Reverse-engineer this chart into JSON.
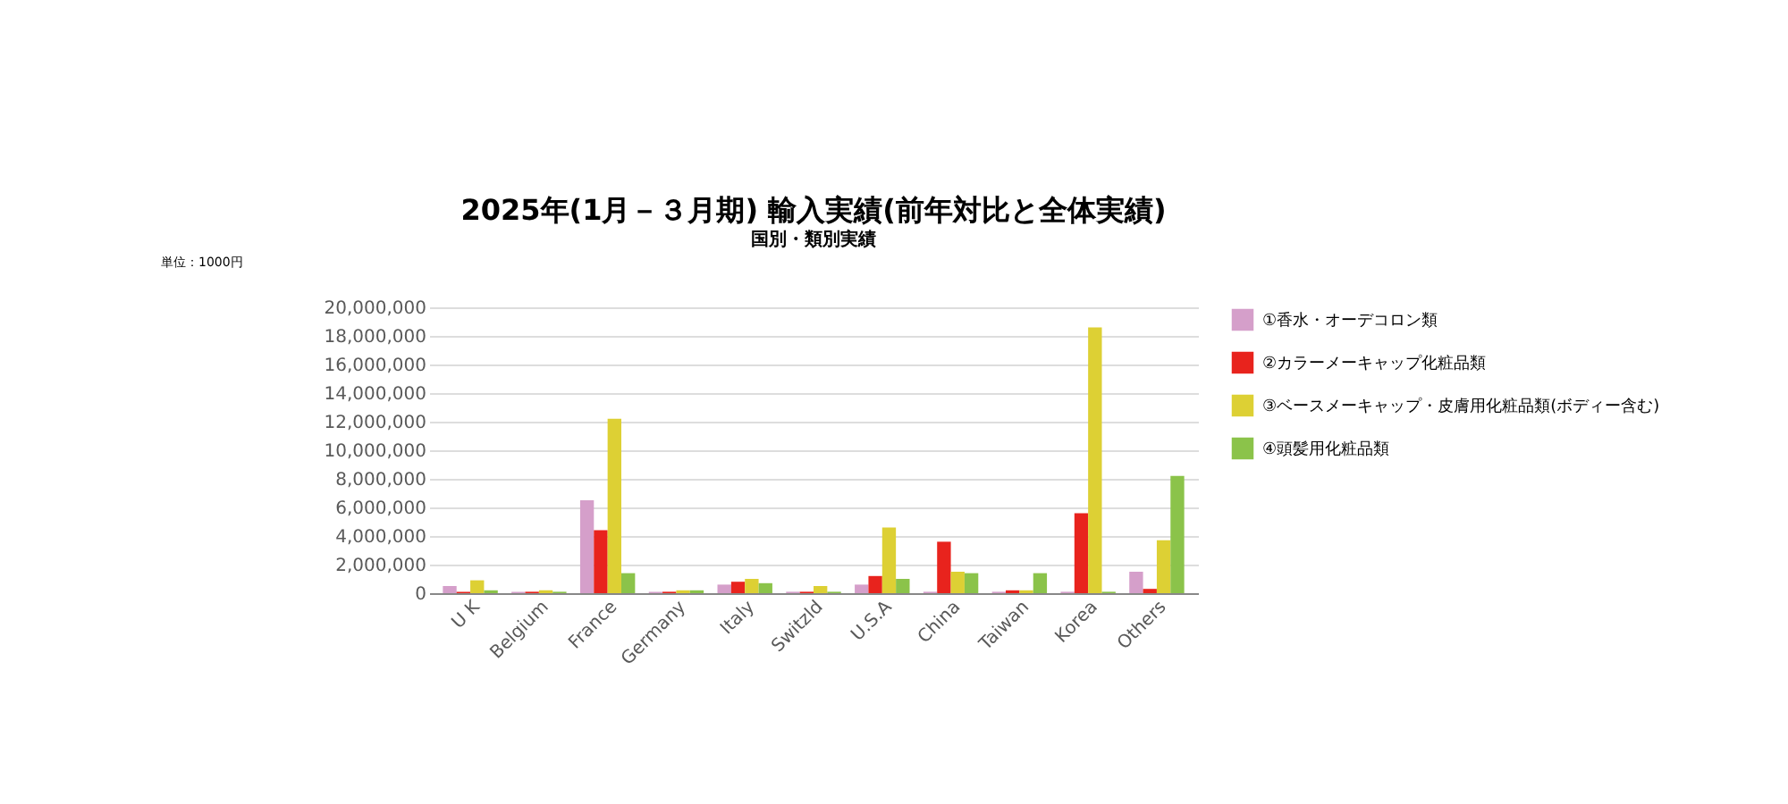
{
  "chart_data": {
    "type": "bar",
    "title": "2025年(1月－３月期)  輸入実績(前年対比と全体実績)",
    "subtitle": "国別・類別実績",
    "annotations": [
      "単位：1000円"
    ],
    "categories": [
      "U K",
      "Belgium",
      "France",
      "Germany",
      "Italy",
      "Switzld",
      "U.S.A",
      "China",
      "Taiwan",
      "Korea",
      "Others"
    ],
    "series": [
      {
        "name": "①香水・オーデコロン類",
        "color": "#d59fca",
        "values": [
          500000,
          100000,
          6500000,
          100000,
          600000,
          100000,
          600000,
          100000,
          100000,
          100000,
          1500000
        ]
      },
      {
        "name": "②カラーメーキャップ化粧品類",
        "color": "#e8231d",
        "values": [
          100000,
          100000,
          4400000,
          100000,
          800000,
          100000,
          1200000,
          3600000,
          200000,
          5600000,
          300000
        ]
      },
      {
        "name": "③ベースメーキャップ・皮膚用化粧品類(ボディー含む)",
        "color": "#ddd034",
        "values": [
          900000,
          200000,
          12200000,
          200000,
          1000000,
          500000,
          4600000,
          1500000,
          200000,
          18600000,
          3700000
        ]
      },
      {
        "name": "④頭髪用化粧品類",
        "color": "#8bc34a",
        "values": [
          200000,
          100000,
          1400000,
          200000,
          700000,
          100000,
          1000000,
          1400000,
          1400000,
          100000,
          8200000
        ]
      }
    ],
    "ylim": [
      0,
      20000000
    ],
    "yticks": [
      0,
      {
        "value": 2000000,
        "label": "2,000,000"
      },
      {
        "value": 4000000,
        "label": "4,000,000"
      },
      {
        "value": 6000000,
        "label": "6,000,000"
      },
      {
        "value": 8000000,
        "label": "8,000,000"
      },
      {
        "value": 10000000,
        "label": "10,000,000"
      },
      {
        "value": 12000000,
        "label": "12,000,000"
      },
      {
        "value": 14000000,
        "label": "14,000,000"
      },
      {
        "value": 16000000,
        "label": "16,000,000"
      },
      {
        "value": 18000000,
        "label": "18,000,000"
      },
      {
        "value": 20000000,
        "label": "20,000,000"
      }
    ],
    "grid": "y",
    "legend": "right"
  }
}
